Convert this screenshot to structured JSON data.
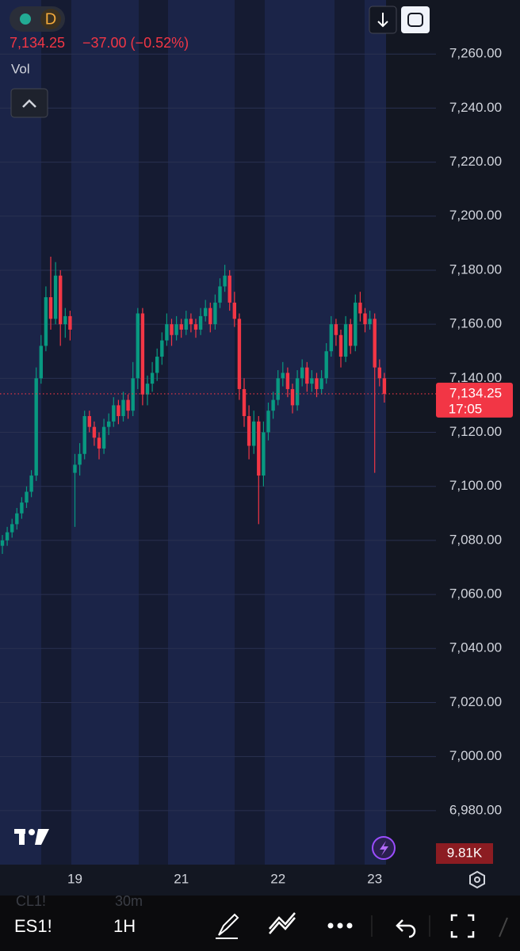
{
  "chart_data": {
    "type": "candlestick",
    "symbol_badge": "D",
    "last": "7,134.25",
    "change": "−37.00 (−0.52%)",
    "volume_label": "Vol",
    "volume_value": "9.81K",
    "last_price": {
      "value": 7134.25,
      "label": "7,134.25"
    },
    "countdown": "17:05",
    "up_color": "#089981",
    "down_color": "#f23645",
    "grid": true,
    "ylim": [
      6960,
      7280
    ],
    "yticks": [
      {
        "value": 7260,
        "label": "7,260.00"
      },
      {
        "value": 7240,
        "label": "7,240.00"
      },
      {
        "value": 7220,
        "label": "7,220.00"
      },
      {
        "value": 7200,
        "label": "7,200.00"
      },
      {
        "value": 7180,
        "label": "7,180.00"
      },
      {
        "value": 7160,
        "label": "7,160.00"
      },
      {
        "value": 7140,
        "label": "7,140.00"
      },
      {
        "value": 7120,
        "label": "7,120.00"
      },
      {
        "value": 7100,
        "label": "7,100.00"
      },
      {
        "value": 7080,
        "label": "7,080.00"
      },
      {
        "value": 7060,
        "label": "7,060.00"
      },
      {
        "value": 7040,
        "label": "7,040.00"
      },
      {
        "value": 7020,
        "label": "7,020.00"
      },
      {
        "value": 7000,
        "label": "7,000.00"
      },
      {
        "value": 6980,
        "label": "6,980.00"
      }
    ],
    "categories": [
      null,
      null,
      null,
      null,
      null,
      null,
      null,
      null,
      null,
      null,
      null,
      null,
      null,
      null,
      null,
      "19",
      null,
      null,
      null,
      null,
      null,
      null,
      null,
      null,
      null,
      null,
      null,
      null,
      null,
      null,
      null,
      null,
      null,
      null,
      null,
      null,
      null,
      "21",
      null,
      null,
      null,
      null,
      null,
      null,
      null,
      null,
      null,
      null,
      null,
      null,
      null,
      null,
      null,
      null,
      null,
      null,
      null,
      "22",
      null,
      null,
      null,
      null,
      null,
      null,
      null,
      null,
      null,
      null,
      null,
      null,
      null,
      null,
      null,
      null,
      null,
      null,
      null,
      "23",
      null,
      null
    ],
    "open": [
      7078,
      7080,
      7083,
      7086,
      7090,
      7094,
      7098,
      7104,
      7140,
      7152,
      7170,
      7162,
      7178,
      7160,
      7163,
      7105,
      7108,
      7112,
      7126,
      7122,
      7118,
      7114,
      7122,
      7124,
      7130,
      7126,
      7132,
      7128,
      7140,
      7164,
      7134,
      7138,
      7142,
      7148,
      7154,
      7160,
      7156,
      7160,
      7158,
      7162,
      7160,
      7158,
      7163,
      7166,
      7160,
      7168,
      7174,
      7178,
      7168,
      7162,
      7136,
      7126,
      7115,
      7124,
      7104,
      7120,
      7128,
      7132,
      7140,
      7142,
      7136,
      7130,
      7140,
      7144,
      7138,
      7140,
      7136,
      7140,
      7150,
      7160,
      7156,
      7148,
      7160,
      7152,
      7168,
      7164,
      7160,
      7162,
      7144,
      7140
    ],
    "high": [
      7082,
      7085,
      7088,
      7092,
      7096,
      7100,
      7106,
      7144,
      7156,
      7174,
      7185,
      7183,
      7180,
      7166,
      7165,
      7112,
      7116,
      7128,
      7128,
      7124,
      7120,
      7125,
      7127,
      7133,
      7132,
      7135,
      7134,
      7146,
      7166,
      7166,
      7141,
      7146,
      7151,
      7157,
      7164,
      7162,
      7163,
      7162,
      7165,
      7164,
      7162,
      7166,
      7169,
      7168,
      7171,
      7177,
      7182,
      7180,
      7172,
      7164,
      7140,
      7130,
      7128,
      7126,
      7124,
      7131,
      7135,
      7143,
      7146,
      7144,
      7138,
      7143,
      7147,
      7146,
      7143,
      7142,
      7143,
      7153,
      7163,
      7162,
      7158,
      7163,
      7162,
      7171,
      7172,
      7166,
      7165,
      7164,
      7147,
      7142
    ],
    "low": [
      7075,
      7078,
      7081,
      7084,
      7088,
      7092,
      7096,
      7102,
      7138,
      7150,
      7158,
      7160,
      7152,
      7155,
      7154,
      7085,
      7104,
      7110,
      7120,
      7115,
      7110,
      7112,
      7119,
      7122,
      7123,
      7124,
      7125,
      7126,
      7136,
      7130,
      7130,
      7135,
      7139,
      7145,
      7152,
      7152,
      7154,
      7155,
      7156,
      7157,
      7155,
      7156,
      7161,
      7157,
      7158,
      7166,
      7172,
      7165,
      7159,
      7132,
      7122,
      7110,
      7112,
      7086,
      7100,
      7117,
      7125,
      7130,
      7137,
      7133,
      7127,
      7128,
      7137,
      7135,
      7135,
      7133,
      7134,
      7138,
      7148,
      7152,
      7144,
      7146,
      7149,
      7150,
      7161,
      7157,
      7158,
      7105,
      7137,
      7131
    ],
    "close": [
      7080,
      7083,
      7086,
      7090,
      7094,
      7098,
      7104,
      7140,
      7152,
      7170,
      7162,
      7178,
      7160,
      7163,
      7158,
      7108,
      7112,
      7126,
      7122,
      7118,
      7114,
      7122,
      7124,
      7130,
      7126,
      7132,
      7128,
      7140,
      7164,
      7134,
      7138,
      7142,
      7148,
      7154,
      7160,
      7156,
      7160,
      7158,
      7162,
      7160,
      7158,
      7163,
      7166,
      7160,
      7168,
      7174,
      7178,
      7168,
      7162,
      7136,
      7126,
      7115,
      7124,
      7104,
      7120,
      7128,
      7132,
      7140,
      7142,
      7136,
      7130,
      7140,
      7144,
      7138,
      7140,
      7136,
      7140,
      7150,
      7160,
      7156,
      7148,
      7160,
      7152,
      7168,
      7164,
      7160,
      7162,
      7144,
      7140,
      7134.25
    ]
  },
  "toolbar": {
    "symbol": "ES1!",
    "interval": "1H",
    "hidden_symbol": "CL1!",
    "hidden_interval": "30m"
  }
}
